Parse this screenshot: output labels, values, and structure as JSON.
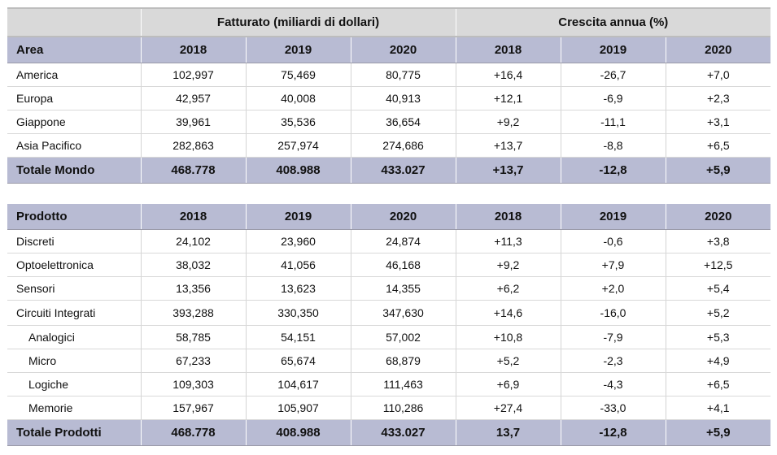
{
  "header_group": {
    "revenue": "Fatturato (miliardi di dollari)",
    "growth": "Crescita annua (%)"
  },
  "area_table": {
    "columns": [
      "Area",
      "2018",
      "2019",
      "2020",
      "2018",
      "2019",
      "2020"
    ],
    "rows": [
      [
        "America",
        "102,997",
        "75,469",
        "80,775",
        "+16,4",
        "-26,7",
        "+7,0"
      ],
      [
        "Europa",
        "42,957",
        "40,008",
        "40,913",
        "+12,1",
        "-6,9",
        "+2,3"
      ],
      [
        "Giappone",
        "39,961",
        "35,536",
        "36,654",
        "+9,2",
        "-11,1",
        "+3,1"
      ],
      [
        "Asia Pacifico",
        "282,863",
        "257,974",
        "274,686",
        "+13,7",
        "-8,8",
        "+6,5"
      ]
    ],
    "total": [
      "Totale Mondo",
      "468.778",
      "408.988",
      "433.027",
      "+13,7",
      "-12,8",
      "+5,9"
    ]
  },
  "product_table": {
    "columns": [
      "Prodotto",
      "2018",
      "2019",
      "2020",
      "2018",
      "2019",
      "2020"
    ],
    "rows": [
      [
        "Discreti",
        "24,102",
        "23,960",
        "24,874",
        "+11,3",
        "-0,6",
        "+3,8"
      ],
      [
        "Optoelettronica",
        "38,032",
        "41,056",
        "46,168",
        "+9,2",
        "+7,9",
        "+12,5"
      ],
      [
        "Sensori",
        "13,356",
        "13,623",
        "14,355",
        "+6,2",
        "+2,0",
        "+5,4"
      ],
      [
        "Circuiti Integrati",
        "393,288",
        "330,350",
        "347,630",
        "+14,6",
        "-16,0",
        "+5,2"
      ],
      [
        "Analogici",
        "58,785",
        "54,151",
        "57,002",
        "+10,8",
        "-7,9",
        "+5,3"
      ],
      [
        "Micro",
        "67,233",
        "65,674",
        "68,879",
        "+5,2",
        "-2,3",
        "+4,9"
      ],
      [
        "Logiche",
        "109,303",
        "104,617",
        "111,463",
        "+6,9",
        "-4,3",
        "+6,5"
      ],
      [
        "Memorie",
        "157,967",
        "105,907",
        "110,286",
        "+27,4",
        "-33,0",
        "+4,1"
      ]
    ],
    "total": [
      "Totale Prodotti",
      "468.778",
      "408.988",
      "433.027",
      "13,7",
      "-12,8",
      "+5,9"
    ]
  }
}
